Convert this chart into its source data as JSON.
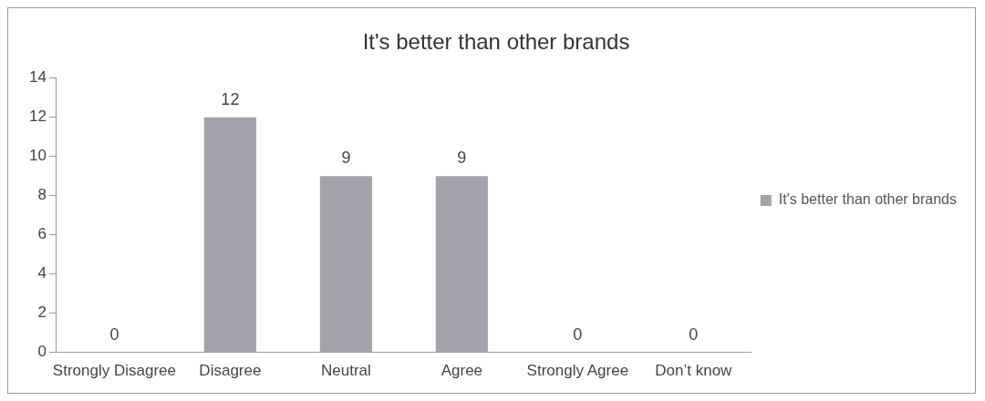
{
  "chart_data": {
    "type": "bar",
    "title": "It's better than other brands",
    "categories": [
      "Strongly Disagree",
      "Disagree",
      "Neutral",
      "Agree",
      "Strongly Agree",
      "Don’t know"
    ],
    "series": [
      {
        "name": "It's better than other brands",
        "color": "#a3a3ab",
        "values": [
          0,
          12,
          9,
          9,
          0,
          0
        ]
      }
    ],
    "ylim": [
      0,
      14
    ],
    "yticks": [
      0,
      2,
      4,
      6,
      8,
      10,
      12,
      14
    ],
    "grid": false,
    "legend": "right",
    "data_labels": true
  }
}
